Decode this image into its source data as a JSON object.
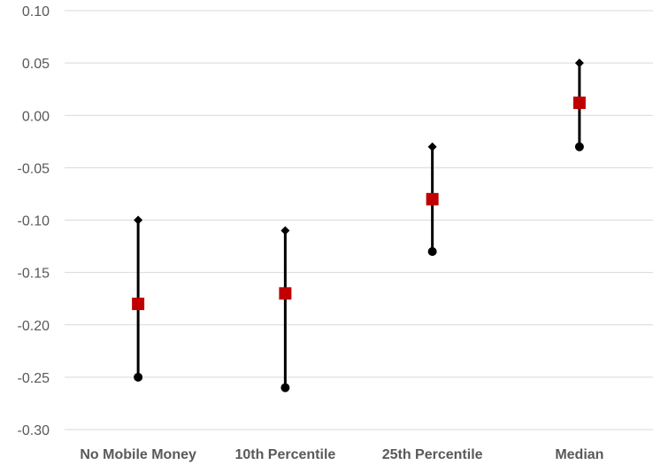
{
  "chart_data": {
    "type": "scatter",
    "title": "",
    "xlabel": "",
    "ylabel": "",
    "categories": [
      "No Mobile Money",
      "10th Percentile",
      "25th Percentile",
      "Median"
    ],
    "ylim": [
      -0.3,
      0.1
    ],
    "yticks": [
      "0.10",
      "0.05",
      "0.00",
      "-0.05",
      "-0.10",
      "-0.15",
      "-0.20",
      "-0.25",
      "-0.30"
    ],
    "grid": true,
    "legend": "none",
    "series": [
      {
        "values": [
          -0.1,
          -0.11,
          -0.03,
          0.05
        ],
        "color": "#000000",
        "marker": "diamond"
      },
      {
        "values": [
          -0.18,
          -0.17,
          -0.08,
          0.012
        ],
        "color": "#c00000",
        "marker": "square"
      },
      {
        "values": [
          -0.25,
          -0.26,
          -0.13,
          -0.03
        ],
        "color": "#000000",
        "marker": "circle"
      }
    ]
  }
}
